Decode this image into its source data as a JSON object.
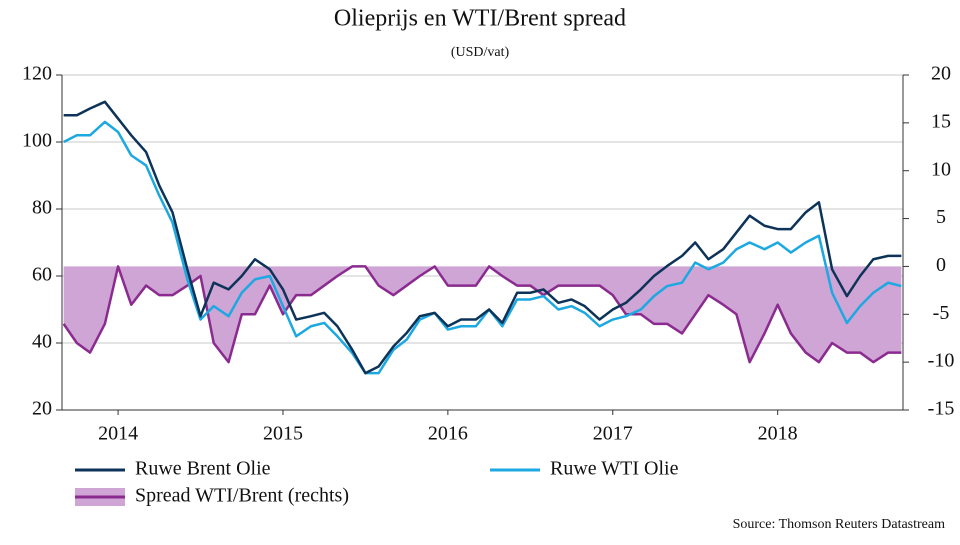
{
  "chart_data": {
    "type": "line",
    "title": "Olieprijs en WTI/Brent spread",
    "subtitle": "(USD/vat)",
    "source": "Source: Thomson Reuters Datastream",
    "x": [
      2014.17,
      2014.25,
      2014.33,
      2014.42,
      2014.5,
      2014.58,
      2014.67,
      2014.75,
      2014.83,
      2014.92,
      2015.0,
      2015.08,
      2015.17,
      2015.25,
      2015.33,
      2015.42,
      2015.5,
      2015.58,
      2015.67,
      2015.75,
      2015.83,
      2015.92,
      2016.0,
      2016.08,
      2016.17,
      2016.25,
      2016.33,
      2016.42,
      2016.5,
      2016.58,
      2016.67,
      2016.75,
      2016.83,
      2016.92,
      2017.0,
      2017.08,
      2017.17,
      2017.25,
      2017.33,
      2017.42,
      2017.5,
      2017.58,
      2017.67,
      2017.75,
      2017.83,
      2017.92,
      2018.0,
      2018.08,
      2018.17,
      2018.25,
      2018.33,
      2018.42,
      2018.5,
      2018.58,
      2018.67,
      2018.75,
      2018.83,
      2018.92,
      2019.0,
      2019.08,
      2019.17,
      2019.25
    ],
    "xlim": [
      2014.16,
      2019.26
    ],
    "xticks": [
      {
        "value": 2014.5,
        "label": "2014"
      },
      {
        "value": 2015.5,
        "label": "2015"
      },
      {
        "value": 2016.5,
        "label": "2016"
      },
      {
        "value": 2017.5,
        "label": "2017"
      },
      {
        "value": 2018.5,
        "label": "2018"
      }
    ],
    "ylim": [
      20,
      120
    ],
    "yticks": [
      20,
      40,
      60,
      80,
      100,
      120
    ],
    "y2lim": [
      -15,
      20
    ],
    "y2ticks": [
      -15,
      -10,
      -5,
      0,
      5,
      10,
      15,
      20
    ],
    "grid": true,
    "series": [
      {
        "name": "Ruwe Brent Olie",
        "color": "#0d3358",
        "values": [
          108,
          108,
          110,
          112,
          107,
          102,
          97,
          87,
          79,
          62,
          48,
          58,
          56,
          60,
          65,
          62,
          56,
          47,
          48,
          49,
          45,
          38,
          31,
          33,
          39,
          43,
          48,
          49,
          45,
          47,
          47,
          50,
          46,
          55,
          55,
          56,
          52,
          53,
          51,
          47,
          50,
          52,
          56,
          60,
          63,
          66,
          70,
          65,
          68,
          73,
          78,
          75,
          74,
          74,
          79,
          82,
          62,
          54,
          60,
          65,
          66,
          66
        ]
      },
      {
        "name": "Ruwe WTI Olie",
        "color": "#1ca8e0",
        "values": [
          100,
          102,
          102,
          106,
          103,
          96,
          93,
          84,
          76,
          59,
          47,
          51,
          48,
          55,
          59,
          60,
          51,
          42,
          45,
          46,
          42,
          37,
          31,
          31,
          38,
          41,
          47,
          49,
          44,
          45,
          45,
          50,
          45,
          53,
          53,
          54,
          50,
          51,
          49,
          45,
          47,
          48,
          50,
          54,
          57,
          58,
          64,
          62,
          64,
          68,
          70,
          68,
          70,
          67,
          70,
          72,
          55,
          46,
          51,
          55,
          58,
          57
        ]
      },
      {
        "name": "Spread WTI/Brent (rechts)",
        "color": "#8b2a8f",
        "fill": "#cfa5d6",
        "area": true,
        "axis": "y2",
        "values": [
          -6,
          -8,
          -9,
          -6,
          0,
          -4,
          -2,
          -3,
          -3,
          -2,
          -1,
          -8,
          -10,
          -5,
          -5,
          -2,
          -5,
          -3,
          -3,
          -2,
          -1,
          0,
          0,
          -2,
          -3,
          -2,
          -1,
          0,
          -2,
          -2,
          -2,
          0,
          -1,
          -2,
          -2,
          -3,
          -2,
          -2,
          -2,
          -2,
          -3,
          -5,
          -5,
          -6,
          -6,
          -7,
          -5,
          -3,
          -4,
          -5,
          -10,
          -7,
          -4,
          -7,
          -9,
          -10,
          -8,
          -9,
          -9,
          -10,
          -9,
          -9
        ]
      }
    ]
  }
}
